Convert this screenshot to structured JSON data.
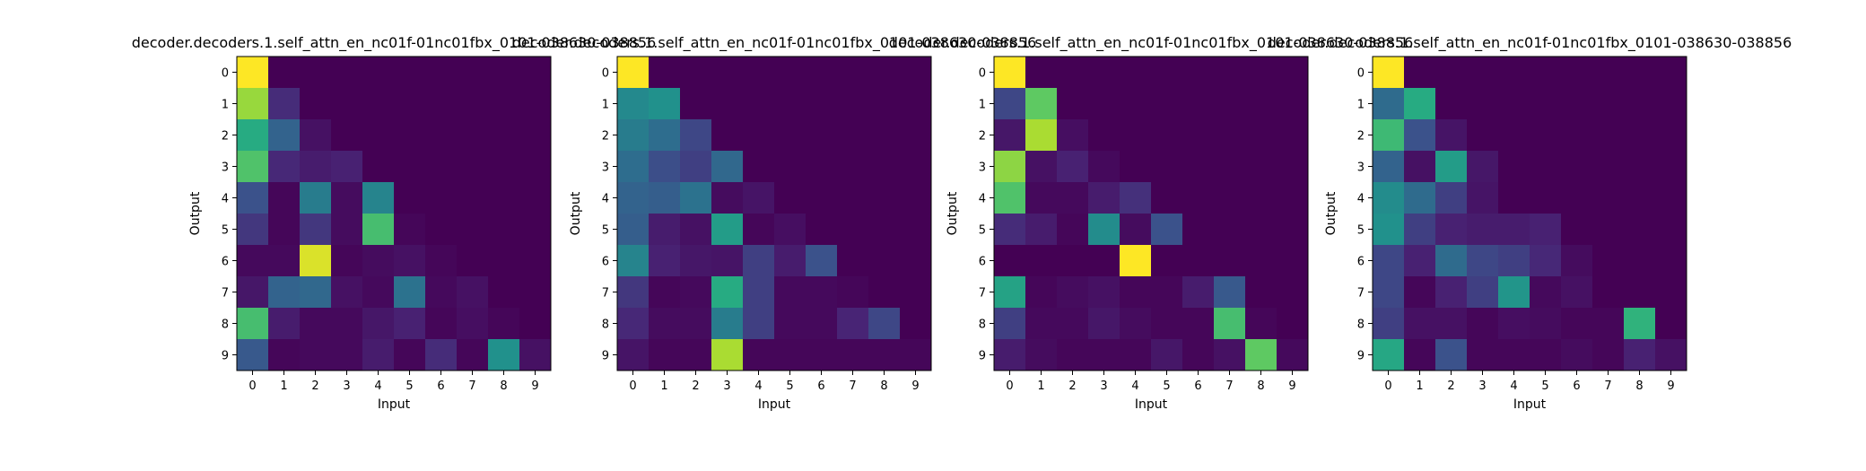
{
  "colormap": "viridis",
  "chart_data": [
    {
      "type": "heatmap",
      "title": "decoder.decoders.1.self_attn_en_nc01f-01nc01fbx_0101-038630-038856",
      "xlabel": "Input",
      "ylabel": "Output",
      "x_ticks": [
        "0",
        "1",
        "2",
        "3",
        "4",
        "5",
        "6",
        "7",
        "8",
        "9"
      ],
      "y_ticks": [
        "0",
        "1",
        "2",
        "3",
        "4",
        "5",
        "6",
        "7",
        "8",
        "9"
      ],
      "value_range": [
        0,
        1
      ],
      "values": [
        [
          1.0,
          0.0,
          0.0,
          0.0,
          0.0,
          0.0,
          0.0,
          0.0,
          0.0,
          0.0
        ],
        [
          0.85,
          0.15,
          0.0,
          0.0,
          0.0,
          0.0,
          0.0,
          0.0,
          0.0,
          0.0
        ],
        [
          0.62,
          0.32,
          0.06,
          0.0,
          0.0,
          0.0,
          0.0,
          0.0,
          0.0,
          0.0
        ],
        [
          0.72,
          0.14,
          0.1,
          0.12,
          0.0,
          0.0,
          0.0,
          0.0,
          0.0,
          0.0
        ],
        [
          0.25,
          0.02,
          0.42,
          0.04,
          0.45,
          0.0,
          0.0,
          0.0,
          0.0,
          0.0
        ],
        [
          0.18,
          0.02,
          0.18,
          0.04,
          0.7,
          0.02,
          0.0,
          0.0,
          0.0,
          0.0
        ],
        [
          0.03,
          0.03,
          0.95,
          0.02,
          0.04,
          0.06,
          0.02,
          0.0,
          0.0,
          0.0
        ],
        [
          0.08,
          0.32,
          0.34,
          0.06,
          0.03,
          0.38,
          0.03,
          0.06,
          0.0,
          0.0
        ],
        [
          0.7,
          0.1,
          0.03,
          0.03,
          0.08,
          0.12,
          0.02,
          0.05,
          0.02,
          0.0
        ],
        [
          0.28,
          0.02,
          0.03,
          0.03,
          0.1,
          0.02,
          0.15,
          0.02,
          0.5,
          0.06
        ]
      ]
    },
    {
      "type": "heatmap",
      "title": "decoder.decoders.1.self_attn_en_nc01f-01nc01fbx_0101-038630-038856",
      "xlabel": "Input",
      "ylabel": "Output",
      "x_ticks": [
        "0",
        "1",
        "2",
        "3",
        "4",
        "5",
        "6",
        "7",
        "8",
        "9"
      ],
      "y_ticks": [
        "0",
        "1",
        "2",
        "3",
        "4",
        "5",
        "6",
        "7",
        "8",
        "9"
      ],
      "value_range": [
        0,
        1
      ],
      "values": [
        [
          1.0,
          0.0,
          0.0,
          0.0,
          0.0,
          0.0,
          0.0,
          0.0,
          0.0,
          0.0
        ],
        [
          0.47,
          0.5,
          0.0,
          0.0,
          0.0,
          0.0,
          0.0,
          0.0,
          0.0,
          0.0
        ],
        [
          0.42,
          0.36,
          0.22,
          0.0,
          0.0,
          0.0,
          0.0,
          0.0,
          0.0,
          0.0
        ],
        [
          0.36,
          0.24,
          0.2,
          0.34,
          0.0,
          0.0,
          0.0,
          0.0,
          0.0,
          0.0
        ],
        [
          0.32,
          0.3,
          0.38,
          0.04,
          0.07,
          0.0,
          0.0,
          0.0,
          0.0,
          0.0
        ],
        [
          0.3,
          0.1,
          0.06,
          0.55,
          0.02,
          0.05,
          0.0,
          0.0,
          0.0,
          0.0
        ],
        [
          0.45,
          0.12,
          0.08,
          0.07,
          0.2,
          0.1,
          0.25,
          0.0,
          0.0,
          0.0
        ],
        [
          0.18,
          0.02,
          0.03,
          0.62,
          0.2,
          0.03,
          0.03,
          0.02,
          0.0,
          0.0
        ],
        [
          0.14,
          0.04,
          0.04,
          0.42,
          0.2,
          0.03,
          0.03,
          0.13,
          0.22,
          0.0
        ],
        [
          0.07,
          0.02,
          0.02,
          0.88,
          0.02,
          0.02,
          0.02,
          0.02,
          0.02,
          0.02
        ]
      ]
    },
    {
      "type": "heatmap",
      "title": "decoder.decoders.1.self_attn_en_nc01f-01nc01fbx_0101-038630-038856",
      "xlabel": "Input",
      "ylabel": "Output",
      "x_ticks": [
        "0",
        "1",
        "2",
        "3",
        "4",
        "5",
        "6",
        "7",
        "8",
        "9"
      ],
      "y_ticks": [
        "0",
        "1",
        "2",
        "3",
        "4",
        "5",
        "6",
        "7",
        "8",
        "9"
      ],
      "value_range": [
        0,
        1
      ],
      "values": [
        [
          1.0,
          0.0,
          0.0,
          0.0,
          0.0,
          0.0,
          0.0,
          0.0,
          0.0,
          0.0
        ],
        [
          0.22,
          0.75,
          0.0,
          0.0,
          0.0,
          0.0,
          0.0,
          0.0,
          0.0,
          0.0
        ],
        [
          0.08,
          0.88,
          0.05,
          0.0,
          0.0,
          0.0,
          0.0,
          0.0,
          0.0,
          0.0
        ],
        [
          0.83,
          0.06,
          0.12,
          0.03,
          0.0,
          0.0,
          0.0,
          0.0,
          0.0,
          0.0
        ],
        [
          0.72,
          0.03,
          0.03,
          0.1,
          0.16,
          0.0,
          0.0,
          0.0,
          0.0,
          0.0
        ],
        [
          0.15,
          0.1,
          0.02,
          0.48,
          0.04,
          0.25,
          0.0,
          0.0,
          0.0,
          0.0
        ],
        [
          0.0,
          0.0,
          0.0,
          0.0,
          1.0,
          0.0,
          0.0,
          0.0,
          0.0,
          0.0
        ],
        [
          0.58,
          0.02,
          0.04,
          0.06,
          0.02,
          0.02,
          0.1,
          0.28,
          0.0,
          0.0
        ],
        [
          0.2,
          0.03,
          0.03,
          0.08,
          0.04,
          0.02,
          0.02,
          0.7,
          0.02,
          0.0
        ],
        [
          0.1,
          0.04,
          0.02,
          0.02,
          0.02,
          0.08,
          0.02,
          0.06,
          0.75,
          0.03
        ]
      ]
    },
    {
      "type": "heatmap",
      "title": "decoder.decoders.1.self_attn_en_nc01f-01nc01fbx_0101-038630-038856",
      "xlabel": "Input",
      "ylabel": "Output",
      "x_ticks": [
        "0",
        "1",
        "2",
        "3",
        "4",
        "5",
        "6",
        "7",
        "8",
        "9"
      ],
      "y_ticks": [
        "0",
        "1",
        "2",
        "3",
        "4",
        "5",
        "6",
        "7",
        "8",
        "9"
      ],
      "value_range": [
        0,
        1
      ],
      "values": [
        [
          1.0,
          0.0,
          0.0,
          0.0,
          0.0,
          0.0,
          0.0,
          0.0,
          0.0,
          0.0
        ],
        [
          0.35,
          0.62,
          0.0,
          0.0,
          0.0,
          0.0,
          0.0,
          0.0,
          0.0,
          0.0
        ],
        [
          0.68,
          0.25,
          0.07,
          0.0,
          0.0,
          0.0,
          0.0,
          0.0,
          0.0,
          0.0
        ],
        [
          0.32,
          0.06,
          0.55,
          0.08,
          0.0,
          0.0,
          0.0,
          0.0,
          0.0,
          0.0
        ],
        [
          0.48,
          0.35,
          0.2,
          0.07,
          0.0,
          0.0,
          0.0,
          0.0,
          0.0,
          0.0
        ],
        [
          0.5,
          0.2,
          0.12,
          0.1,
          0.1,
          0.12,
          0.0,
          0.0,
          0.0,
          0.0
        ],
        [
          0.22,
          0.12,
          0.35,
          0.22,
          0.2,
          0.14,
          0.04,
          0.0,
          0.0,
          0.0
        ],
        [
          0.22,
          0.02,
          0.12,
          0.2,
          0.52,
          0.03,
          0.06,
          0.0,
          0.0,
          0.0
        ],
        [
          0.2,
          0.06,
          0.06,
          0.02,
          0.05,
          0.04,
          0.02,
          0.02,
          0.65,
          0.0
        ],
        [
          0.6,
          0.02,
          0.25,
          0.02,
          0.02,
          0.02,
          0.04,
          0.02,
          0.12,
          0.06
        ]
      ]
    }
  ]
}
